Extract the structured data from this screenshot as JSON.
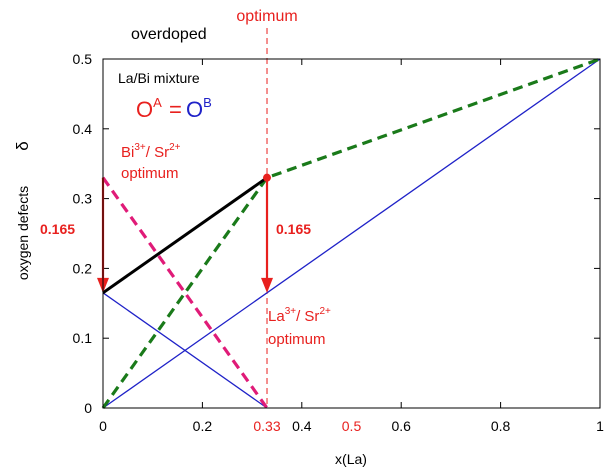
{
  "chart_data": {
    "type": "line",
    "xlabel": "x(La)",
    "ylabel": "oxygen defects",
    "ylabel_symbol": "δ",
    "xlim": [
      0,
      1
    ],
    "ylim": [
      0,
      0.5
    ],
    "xticks": [
      {
        "value": 0,
        "label": "0"
      },
      {
        "value": 0.2,
        "label": "0.2"
      },
      {
        "value": 0.4,
        "label": "0.4"
      },
      {
        "value": 0.6,
        "label": "0.6"
      },
      {
        "value": 0.8,
        "label": "0.8"
      },
      {
        "value": 1,
        "label": "1"
      }
    ],
    "extra_xticks": [
      {
        "value": 0.33,
        "label": "0.33",
        "color": "#e8201e"
      },
      {
        "value": 0.5,
        "label": "0.5",
        "color": "#e8201e"
      }
    ],
    "yticks": [
      {
        "value": 0,
        "label": "0"
      },
      {
        "value": 0.1,
        "label": "0.1"
      },
      {
        "value": 0.2,
        "label": "0.2"
      },
      {
        "value": 0.3,
        "label": "0.3"
      },
      {
        "value": 0.4,
        "label": "0.4"
      },
      {
        "value": 0.5,
        "label": "0.5"
      }
    ],
    "series": [
      {
        "color": "#1f22c8",
        "style": "solid",
        "points": [
          [
            0,
            0
          ],
          [
            1,
            0.5
          ]
        ]
      },
      {
        "color": "#1f22c8",
        "style": "solid",
        "points": [
          [
            0,
            0.165
          ],
          [
            0.33,
            0
          ]
        ]
      },
      {
        "color": "#e01b78",
        "style": "dashed",
        "points": [
          [
            0,
            0.33
          ],
          [
            0.33,
            0
          ]
        ]
      },
      {
        "color": "#1a7a1a",
        "style": "dashed",
        "points": [
          [
            0,
            0
          ],
          [
            0.33,
            0.33
          ],
          [
            1,
            0.5
          ]
        ]
      },
      {
        "color": "#000000",
        "style": "solid",
        "points": [
          [
            0,
            0.165
          ],
          [
            0.33,
            0.33
          ]
        ]
      }
    ],
    "marker": {
      "x": 0.33,
      "y": 0.33,
      "color": "#e8201e"
    },
    "optimum_line": {
      "x": 0.33,
      "color": "#e8201e"
    },
    "arrows": [
      {
        "x": 0,
        "from": 0.33,
        "to": 0.165,
        "color": "#e8201e"
      },
      {
        "x": 0.33,
        "from": 0.33,
        "to": 0.165,
        "color": "#e8201e"
      }
    ],
    "annotations": {
      "optimum": "optimum",
      "overdoped": "overdoped",
      "mixture": "La/Bi  mixture",
      "oa": "O",
      "oa_sup": "A",
      "eq": "=",
      "ob": "O",
      "ob_sup": "B",
      "bi_line1": "Bi",
      "bi_sup": "3+",
      "bi_slash": "/  Sr",
      "bi_sup2": "2+",
      "bi_line2": "optimum",
      "delta_left": "0.165",
      "delta_mid": "0.165",
      "la_line1": "La",
      "la_sup": "3+",
      "la_slash": "/ Sr",
      "la_sup2": "2+",
      "la_line2": "optimum"
    }
  }
}
